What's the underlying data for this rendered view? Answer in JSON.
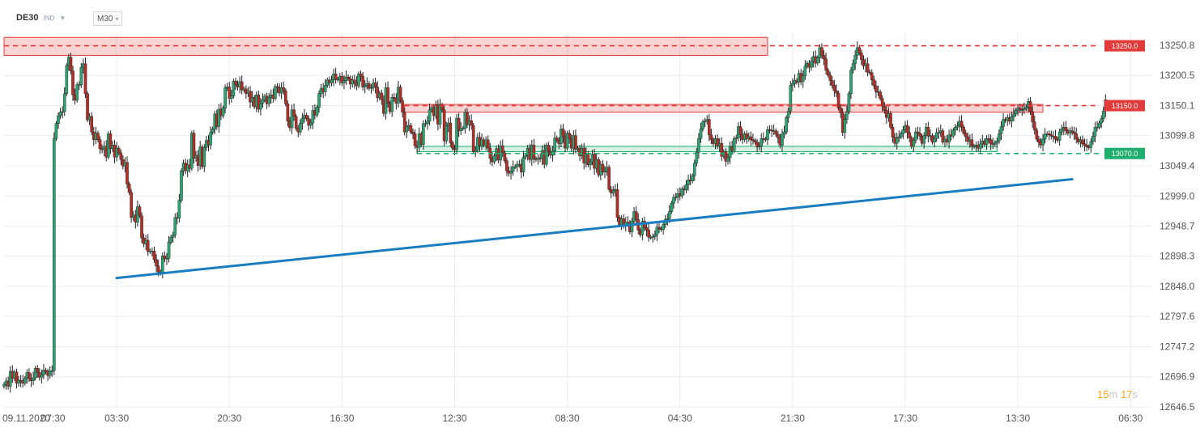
{
  "header": {
    "symbol": "DE30",
    "market": "IND",
    "timeframe": "M30"
  },
  "countdown": {
    "min": "15",
    "min_unit": "m",
    "sec": "17",
    "sec_unit": "s"
  },
  "colors": {
    "bull": "#2ea272",
    "bear": "#b32d27",
    "resistance": "#e23b3b",
    "support": "#1fae6d",
    "trendline": "#1a7dc2",
    "grid": "#ececec",
    "axis_text": "#555555"
  },
  "chart_data": {
    "type": "candlestick",
    "symbol": "DE30",
    "timeframe": "M30",
    "y_ticks": [
      "13250.8",
      "13200.5",
      "13150.1",
      "13099.8",
      "13049.4",
      "12999.0",
      "12948.7",
      "12898.3",
      "12848.0",
      "12797.6",
      "12747.2",
      "12696.9",
      "12646.5"
    ],
    "ylim": [
      12646.5,
      13250.8
    ],
    "x_ticks": [
      "09.11.2020",
      "07:30",
      "03:30",
      "20:30",
      "16:30",
      "12:30",
      "08:30",
      "04:30",
      "21:30",
      "17:30",
      "13:30",
      "06:30"
    ],
    "xlim": [
      0,
      275
    ],
    "levels": [
      {
        "label": "13250.0",
        "value": 13250.0,
        "type": "resistance",
        "zone": [
          13234,
          13264
        ],
        "zone_x": [
          0,
          183
        ]
      },
      {
        "label": "13150.0",
        "value": 13150.0,
        "type": "resistance",
        "zone": [
          13139,
          13152
        ],
        "zone_x": [
          96,
          249
        ]
      },
      {
        "label": "13070.0",
        "value": 13070.0,
        "type": "support",
        "zone": [
          13073,
          13082
        ],
        "zone_x": [
          99,
          238
        ]
      }
    ],
    "trendline": {
      "from": [
        27,
        12862
      ],
      "to": [
        256,
        13027
      ]
    },
    "closes": [
      12684,
      12690,
      12681,
      12706,
      12694,
      12705,
      12686,
      12691,
      12690,
      12686,
      12694,
      12704,
      12694,
      12690,
      12695,
      12711,
      12704,
      12696,
      12700,
      12708,
      12705,
      12699,
      12707,
      12707,
      13095,
      13120,
      13133,
      13139,
      13140,
      13170,
      13217,
      13231,
      13208,
      13168,
      13159,
      13185,
      13185,
      13214,
      13220,
      13170,
      13126,
      13132,
      13106,
      13093,
      13104,
      13093,
      13078,
      13076,
      13082,
      13064,
      13103,
      13078,
      13084,
      13064,
      13079,
      13071,
      13060,
      13049,
      13055,
      13019,
      13005,
      12963,
      12967,
      12955,
      12981,
      12966,
      12929,
      12919,
      12925,
      12906,
      12907,
      12907,
      12893,
      12882,
      12872,
      12870,
      12899,
      12894,
      12895,
      12922,
      12930,
      12934,
      12963,
      12962,
      12992,
      13041,
      13054,
      13041,
      13051,
      13045,
      13104,
      13062,
      13067,
      13050,
      13081,
      13048,
      13080,
      13092,
      13084,
      13105,
      13111,
      13136,
      13115,
      13144,
      13133,
      13146,
      13180,
      13181,
      13162,
      13166,
      13191,
      13185,
      13181,
      13190,
      13176,
      13178,
      13170,
      13174,
      13156,
      13164,
      13148,
      13168,
      13144,
      13154,
      13160,
      13166,
      13153,
      13164,
      13168,
      13162,
      13182,
      13180,
      13171,
      13180,
      13175,
      13153,
      13124,
      13113,
      13143,
      13132,
      13112,
      13106,
      13120,
      13129,
      13134,
      13128,
      13117,
      13121,
      13142,
      13134,
      13147,
      13170,
      13179,
      13173,
      13184,
      13193,
      13188,
      13193,
      13203,
      13194,
      13193,
      13199,
      13188,
      13192,
      13198,
      13195,
      13186,
      13193,
      13189,
      13183,
      13203,
      13199,
      13181,
      13184,
      13187,
      13179,
      13180,
      13188,
      13181,
      13163,
      13171,
      13160,
      13137,
      13180,
      13154,
      13140,
      13164,
      13162,
      13154,
      13181,
      13158,
      13139,
      13106,
      13115,
      13117,
      13106,
      13103,
      13083,
      13080,
      13103,
      13085,
      13120,
      13120,
      13124,
      13143,
      13147,
      13133,
      13151,
      13119,
      13151,
      13143,
      13091,
      13116,
      13121,
      13088,
      13079,
      13076,
      13129,
      13108,
      13112,
      13112,
      13139,
      13118,
      13125,
      13117,
      13073,
      13076,
      13097,
      13083,
      13093,
      13084,
      13093,
      13079,
      13062,
      13056,
      13066,
      13078,
      13059,
      13083,
      13071,
      13058,
      13041,
      13037,
      13040,
      13048,
      13048,
      13052,
      13052,
      13039,
      13064,
      13067,
      13079,
      13060,
      13084,
      13061,
      13060,
      13063,
      13061,
      13075,
      13052,
      13084,
      13073,
      13067,
      13074,
      13096,
      13092,
      13086,
      13111,
      13098,
      13079,
      13104,
      13095,
      13079,
      13100,
      13077,
      13079,
      13066,
      13079,
      13054,
      13070,
      13051,
      13056,
      13069,
      13045,
      13060,
      13034,
      13052,
      13039,
      13040,
      13047,
      13010,
      13004,
      13008,
      13010,
      12963,
      12951,
      12961,
      12950,
      12955,
      12955,
      12939,
      12957,
      12973,
      12960,
      12942,
      12934,
      12957,
      12946,
      12942,
      12930,
      12930,
      12931,
      12934,
      12947,
      12944,
      12943,
      12951,
      12960,
      12961,
      12973,
      12987,
      12997,
      12997,
      13003,
      12999,
      13011,
      13009,
      13018,
      13026,
      13024,
      13033,
      13054,
      13072,
      13095,
      13111,
      13123,
      13124,
      13127,
      13101,
      13093,
      13086,
      13095,
      13083,
      13087,
      13065,
      13073,
      13057,
      13063,
      13081,
      13075,
      13095,
      13096,
      13115,
      13101,
      13093,
      13103,
      13095,
      13098,
      13093,
      13092,
      13089,
      13081,
      13082,
      13095,
      13094,
      13093,
      13110,
      13109,
      13108,
      13108,
      13102,
      13096,
      13084,
      13102,
      13106,
      13130,
      13141,
      13184,
      13187,
      13192,
      13189,
      13204,
      13190,
      13200,
      13216,
      13221,
      13214,
      13224,
      13232,
      13221,
      13230,
      13247,
      13234,
      13228,
      13209,
      13201,
      13192,
      13184,
      13175,
      13171,
      13146,
      13138,
      13105,
      13127,
      13140,
      13170,
      13209,
      13220,
      13234,
      13247,
      13238,
      13227,
      13216,
      13220,
      13206,
      13205,
      13193,
      13183,
      13173,
      13173,
      13162,
      13149,
      13142,
      13130,
      13137,
      13114,
      13097,
      13087,
      13096,
      13098,
      13103,
      13110,
      13117,
      13105,
      13096,
      13082,
      13092,
      13106,
      13104,
      13099,
      13087,
      13100,
      13114,
      13099,
      13100,
      13089,
      13095,
      13105,
      13105,
      13108,
      13089,
      13094,
      13089,
      13101,
      13099,
      13109,
      13114,
      13116,
      13124,
      13114,
      13104,
      13098,
      13090,
      13093,
      13082,
      13082,
      13084,
      13079,
      13086,
      13091,
      13085,
      13095,
      13093,
      13086,
      13085,
      13088,
      13091,
      13103,
      13115,
      13127,
      13125,
      13130,
      13124,
      13131,
      13136,
      13142,
      13146,
      13143,
      13143,
      13145,
      13148,
      13157,
      13140,
      13123,
      13109,
      13094,
      13089,
      13084,
      13094,
      13102,
      13103,
      13101,
      13099,
      13099,
      13094,
      13092,
      13106,
      13111,
      13114,
      13108,
      13104,
      13108,
      13106,
      13103,
      13094,
      13089,
      13093,
      13086,
      13084,
      13081,
      13080,
      13090,
      13099,
      13114,
      13114,
      13121,
      13128,
      13141,
      13160
    ]
  }
}
